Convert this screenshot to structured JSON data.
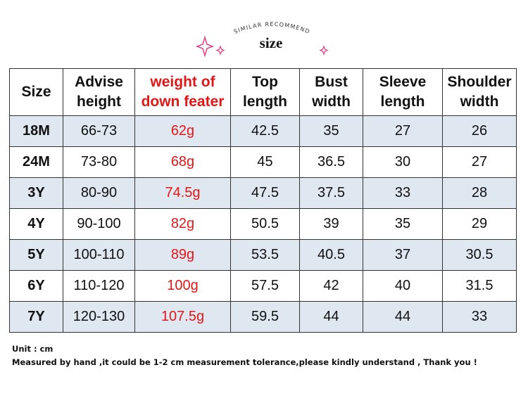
{
  "header": {
    "subtitle": "SIMILAR RECOMMEND",
    "title": "size"
  },
  "table": {
    "columns": [
      [
        "Size"
      ],
      [
        "Advise",
        "height"
      ],
      [
        "weight of",
        "down feater"
      ],
      [
        "Top",
        "length"
      ],
      [
        "Bust",
        "width"
      ],
      [
        "Sleeve",
        "length"
      ],
      [
        "Shoulder",
        "width"
      ]
    ],
    "rows": [
      [
        "18M",
        "66-73",
        "62g",
        "42.5",
        "35",
        "27",
        "26"
      ],
      [
        "24M",
        "73-80",
        "68g",
        "45",
        "36.5",
        "30",
        "27"
      ],
      [
        "3Y",
        "80-90",
        "74.5g",
        "47.5",
        "37.5",
        "33",
        "28"
      ],
      [
        "4Y",
        "90-100",
        "82g",
        "50.5",
        "39",
        "35",
        "29"
      ],
      [
        "5Y",
        "100-110",
        "89g",
        "53.5",
        "40.5",
        "37",
        "30.5"
      ],
      [
        "6Y",
        "110-120",
        "100g",
        "57.5",
        "42",
        "40",
        "31.5"
      ],
      [
        "7Y",
        "120-130",
        "107.5g",
        "59.5",
        "44",
        "44",
        "33"
      ]
    ]
  },
  "notes": [
    "Unit : cm",
    "Measured by hand ,it could be 1-2 cm measurement tolerance,please kindly understand , Thank you !"
  ]
}
